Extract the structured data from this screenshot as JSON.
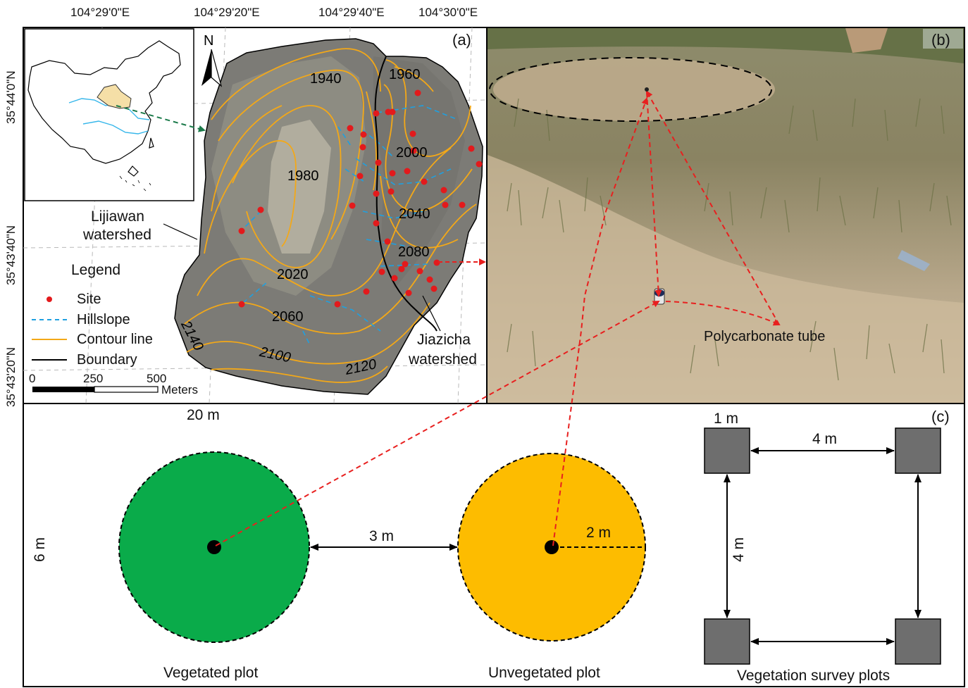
{
  "coords": {
    "top": [
      "104°29'0\"E",
      "104°29'20\"E",
      "104°29'40\"E",
      "104°30'0\"E"
    ],
    "left": [
      "35°44'0\"N",
      "35°43'40\"N",
      "35°43'20\"N"
    ]
  },
  "panel_a": {
    "letter": "(a)",
    "north": "N",
    "watershed_left": [
      "Lijiawan",
      "watershed"
    ],
    "watershed_right": [
      "Jiazicha",
      "watershed"
    ],
    "contours": [
      "1940",
      "1960",
      "1980",
      "2000",
      "2040",
      "2080",
      "2020",
      "2060",
      "2100",
      "2120",
      "2140"
    ],
    "legend": {
      "title": "Legend",
      "items": [
        {
          "label": "Site",
          "symbol": "red-dot"
        },
        {
          "label": "Hillslope",
          "symbol": "blue-dashed-line"
        },
        {
          "label": "Contour line",
          "symbol": "orange-line"
        },
        {
          "label": "Boundary",
          "symbol": "black-line"
        }
      ]
    },
    "scale": {
      "ticks": [
        "0",
        "250",
        "500"
      ],
      "unit": "Meters"
    }
  },
  "panel_b": {
    "letter": "(b)",
    "caption": "Polycarbonate tube"
  },
  "panel_c": {
    "letter": "(c)",
    "width_label": "20 m",
    "height_label": "6 m",
    "vegetated": {
      "label": "Vegetated plot",
      "color": "#0aab4a"
    },
    "unvegetated": {
      "label": "Unvegetated plot",
      "color": "#fdbc00"
    },
    "gap_label": "3 m",
    "radius_label": "2 m",
    "survey": {
      "label": "Vegetation survey plots",
      "square_label": "1 m",
      "h_spacing": "4 m",
      "v_spacing": "4 m",
      "square_color": "#6e6e6e"
    }
  },
  "colors": {
    "arrow": "#e8201f",
    "contour": "#f3a818",
    "hillslope": "#1fa0e0",
    "site": "#e31a1c"
  }
}
